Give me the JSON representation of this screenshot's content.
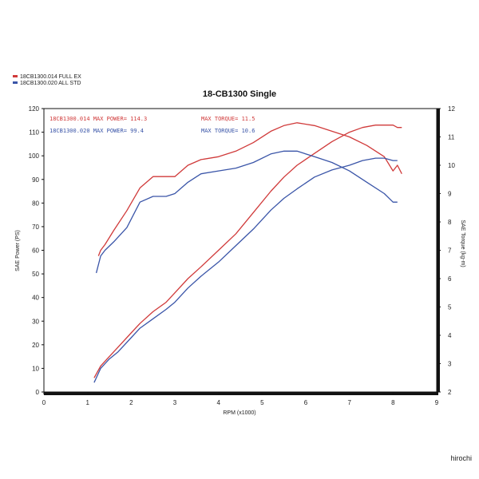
{
  "chart_data": {
    "type": "line",
    "title": "18-CB1300 Single",
    "xlabel": "RPM (x1000)",
    "ylabel": "SAE Power (PS)",
    "y2label": "SAE Torque (kg-m)",
    "xlim": [
      0,
      9
    ],
    "ylim": [
      0,
      120
    ],
    "y2lim": [
      2,
      12
    ],
    "xticks": [
      "0",
      "1",
      "2",
      "3",
      "4",
      "5",
      "6",
      "7",
      "8",
      "9"
    ],
    "yticks": [
      "0",
      "10",
      "20",
      "30",
      "40",
      "50",
      "60",
      "70",
      "80",
      "90",
      "100",
      "110",
      "120"
    ],
    "y2ticks": [
      "2",
      "3",
      "4",
      "5",
      "6",
      "7",
      "8",
      "9",
      "10",
      "11",
      "12"
    ],
    "legend": {
      "placement": "top-left",
      "entries": [
        {
          "label": "18CB1300.014  FULL EX",
          "color": "#d03a3a"
        },
        {
          "label": "18CB1300.020  ALL STD",
          "color": "#3a55a8"
        }
      ]
    },
    "annotations": [
      {
        "text": "18CB1300.014  MAX POWER= 114.3",
        "color": "#d03a3a"
      },
      {
        "text": "MAX TORQUE= 11.5",
        "color": "#d03a3a"
      },
      {
        "text": "18CB1300.020  MAX POWER= 99.4",
        "color": "#3a55a8"
      },
      {
        "text": "MAX TORQUE= 10.6",
        "color": "#3a55a8"
      }
    ],
    "series": [
      {
        "name": "18CB1300.014",
        "quantity": "power",
        "axis": "left",
        "color": "#d03a3a",
        "x": [
          1.15,
          1.3,
          1.5,
          1.7,
          2.0,
          2.2,
          2.5,
          2.8,
          3.0,
          3.3,
          3.6,
          4.0,
          4.4,
          4.8,
          5.2,
          5.5,
          5.8,
          6.2,
          6.6,
          7.0,
          7.3,
          7.6,
          7.8,
          8.0,
          8.1,
          8.2
        ],
        "y": [
          6,
          11,
          15,
          19,
          25,
          29,
          34,
          38,
          42,
          48,
          53,
          60,
          67,
          76,
          85,
          91,
          96,
          101,
          106,
          110,
          112,
          113,
          113,
          113,
          112,
          112
        ]
      },
      {
        "name": "18CB1300.014",
        "quantity": "torque",
        "axis": "right",
        "color": "#d03a3a",
        "x": [
          1.25,
          1.3,
          1.4,
          1.6,
          1.9,
          2.2,
          2.5,
          2.8,
          3.0,
          3.3,
          3.6,
          4.0,
          4.4,
          4.8,
          5.2,
          5.5,
          5.8,
          6.2,
          6.6,
          7.0,
          7.4,
          7.8,
          8.0,
          8.1,
          8.2
        ],
        "y": [
          6.8,
          7.0,
          7.2,
          7.7,
          8.4,
          9.2,
          9.6,
          9.6,
          9.6,
          10.0,
          10.2,
          10.3,
          10.5,
          10.8,
          11.2,
          11.4,
          11.5,
          11.4,
          11.2,
          11.0,
          10.7,
          10.3,
          9.8,
          10.0,
          9.7
        ]
      },
      {
        "name": "18CB1300.020",
        "quantity": "power",
        "axis": "left",
        "color": "#3a55a8",
        "x": [
          1.15,
          1.3,
          1.5,
          1.7,
          2.0,
          2.2,
          2.5,
          2.8,
          3.0,
          3.3,
          3.6,
          4.0,
          4.4,
          4.8,
          5.2,
          5.5,
          5.8,
          6.2,
          6.6,
          7.0,
          7.3,
          7.6,
          7.8,
          8.0,
          8.1
        ],
        "y": [
          4,
          10,
          14,
          17,
          23,
          27,
          31,
          35,
          38,
          44,
          49,
          55,
          62,
          69,
          77,
          82,
          86,
          91,
          94,
          96,
          98,
          99,
          99,
          98,
          98
        ]
      },
      {
        "name": "18CB1300.020",
        "quantity": "torque",
        "axis": "right",
        "color": "#3a55a8",
        "x": [
          1.2,
          1.3,
          1.4,
          1.6,
          1.9,
          2.2,
          2.5,
          2.8,
          3.0,
          3.3,
          3.6,
          4.0,
          4.4,
          4.8,
          5.2,
          5.5,
          5.8,
          6.2,
          6.6,
          7.0,
          7.4,
          7.8,
          8.0,
          8.1
        ],
        "y": [
          6.2,
          6.8,
          7.0,
          7.3,
          7.8,
          8.7,
          8.9,
          8.9,
          9.0,
          9.4,
          9.7,
          9.8,
          9.9,
          10.1,
          10.4,
          10.5,
          10.5,
          10.3,
          10.1,
          9.8,
          9.4,
          9.0,
          8.7,
          8.7
        ]
      }
    ],
    "grid": false
  },
  "watermark": "hirochi"
}
